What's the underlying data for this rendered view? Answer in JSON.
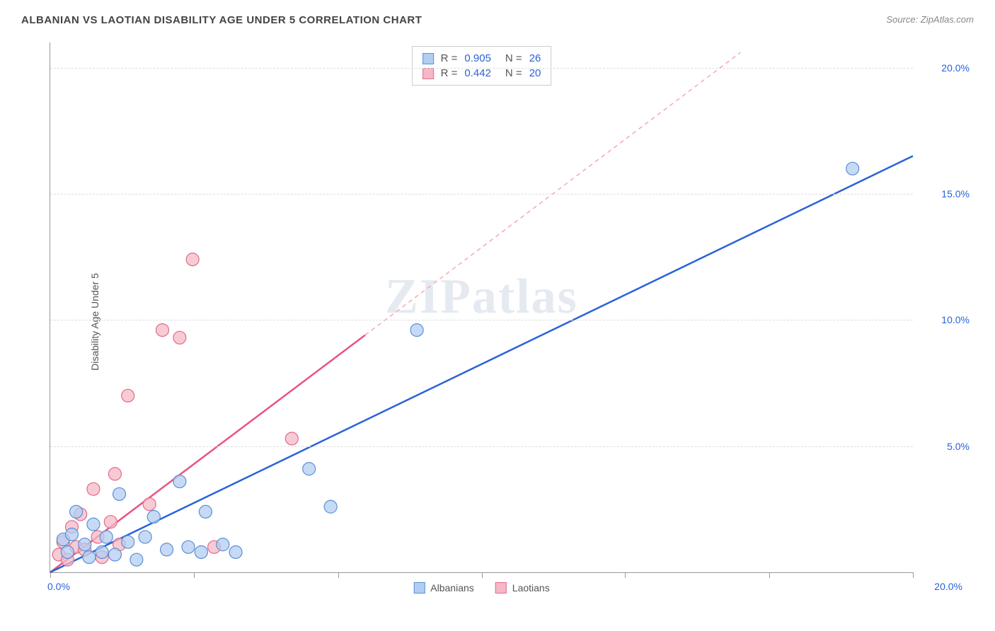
{
  "title": "ALBANIAN VS LAOTIAN DISABILITY AGE UNDER 5 CORRELATION CHART",
  "source_label": "Source:",
  "source_name": "ZipAtlas.com",
  "y_axis_title": "Disability Age Under 5",
  "watermark": "ZIPatlas",
  "chart": {
    "type": "scatter",
    "xlim": [
      0,
      20
    ],
    "ylim": [
      0,
      21
    ],
    "x_ticks": [
      0,
      3.33,
      6.67,
      10,
      13.33,
      16.67,
      20
    ],
    "y_gridlines": [
      5,
      10,
      15,
      20
    ],
    "x_tick_label_left": "0.0%",
    "x_tick_label_right": "20.0%",
    "y_tick_labels": {
      "5": "5.0%",
      "10": "10.0%",
      "15": "15.0%",
      "20": "20.0%"
    },
    "background_color": "#ffffff",
    "grid_color": "#dddddd",
    "axis_color": "#999999",
    "series": [
      {
        "name": "Albanians",
        "fill": "#b3cdf2",
        "stroke": "#5a8fd6",
        "fill_opacity": 0.75,
        "marker_radius": 9,
        "R": "0.905",
        "N": "26",
        "trend": {
          "x1": 0,
          "y1": 0,
          "x2": 20,
          "y2": 16.5,
          "color": "#2962d9",
          "width": 2.5,
          "dash": "none"
        },
        "points": [
          [
            0.3,
            1.3
          ],
          [
            0.4,
            0.8
          ],
          [
            0.5,
            1.5
          ],
          [
            0.6,
            2.4
          ],
          [
            0.8,
            1.1
          ],
          [
            0.9,
            0.6
          ],
          [
            1.0,
            1.9
          ],
          [
            1.2,
            0.8
          ],
          [
            1.3,
            1.4
          ],
          [
            1.5,
            0.7
          ],
          [
            1.6,
            3.1
          ],
          [
            1.8,
            1.2
          ],
          [
            2.0,
            0.5
          ],
          [
            2.2,
            1.4
          ],
          [
            2.4,
            2.2
          ],
          [
            2.7,
            0.9
          ],
          [
            3.0,
            3.6
          ],
          [
            3.2,
            1.0
          ],
          [
            3.5,
            0.8
          ],
          [
            3.6,
            2.4
          ],
          [
            4.0,
            1.1
          ],
          [
            4.3,
            0.8
          ],
          [
            6.0,
            4.1
          ],
          [
            6.5,
            2.6
          ],
          [
            8.5,
            9.6
          ],
          [
            18.6,
            16.0
          ]
        ]
      },
      {
        "name": "Laotians",
        "fill": "#f5b8c6",
        "stroke": "#e06b8a",
        "fill_opacity": 0.75,
        "marker_radius": 9,
        "R": "0.442",
        "N": "20",
        "trend_solid": {
          "x1": 0,
          "y1": 0,
          "x2": 7.3,
          "y2": 9.4,
          "color": "#e75480",
          "width": 2.5
        },
        "trend_dash": {
          "x1": 7.3,
          "y1": 9.4,
          "x2": 16.0,
          "y2": 20.6,
          "color": "#f5a8b8",
          "width": 1.5
        },
        "points": [
          [
            0.2,
            0.7
          ],
          [
            0.3,
            1.2
          ],
          [
            0.4,
            0.5
          ],
          [
            0.5,
            1.8
          ],
          [
            0.6,
            1.0
          ],
          [
            0.7,
            2.3
          ],
          [
            0.8,
            0.9
          ],
          [
            1.0,
            3.3
          ],
          [
            1.1,
            1.4
          ],
          [
            1.2,
            0.6
          ],
          [
            1.4,
            2.0
          ],
          [
            1.5,
            3.9
          ],
          [
            1.6,
            1.1
          ],
          [
            1.8,
            7.0
          ],
          [
            2.3,
            2.7
          ],
          [
            2.6,
            9.6
          ],
          [
            3.0,
            9.3
          ],
          [
            3.3,
            12.4
          ],
          [
            3.8,
            1.0
          ],
          [
            5.6,
            5.3
          ]
        ]
      }
    ]
  },
  "bottom_legend": [
    {
      "label": "Albanians",
      "fill": "#b3cdf2",
      "stroke": "#5a8fd6"
    },
    {
      "label": "Laotians",
      "fill": "#f5b8c6",
      "stroke": "#e06b8a"
    }
  ]
}
